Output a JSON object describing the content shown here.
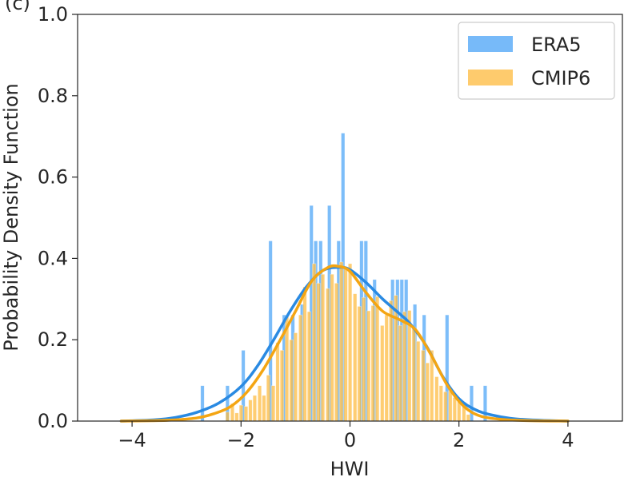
{
  "panel_label": "(c)",
  "chart_data": {
    "type": "bar",
    "title": "",
    "xlabel": "HWI",
    "ylabel": "Probability Density Function",
    "xlim": [
      -5,
      5
    ],
    "ylim": [
      0,
      1.0
    ],
    "xticks": [
      -4,
      -2,
      0,
      2,
      4
    ],
    "xtick_labels": [
      "−4",
      "−2",
      "0",
      "2",
      "4"
    ],
    "yticks": [
      0.0,
      0.2,
      0.4,
      0.6,
      0.8,
      1.0
    ],
    "ytick_labels": [
      "0.0",
      "0.2",
      "0.4",
      "0.6",
      "0.8",
      "1.0"
    ],
    "grid": false,
    "legend_position": "top-right",
    "colors": {
      "ERA5": "#4aa3f7",
      "CMIP6": "#fdba3c",
      "ERA5_kde": "#2a8ae2",
      "CMIP6_kde": "#f4a512"
    },
    "series": [
      {
        "name": "ERA5",
        "kind": "histogram",
        "bin_width": 0.083,
        "bins": [
          {
            "x": -2.7,
            "y": 0.087
          },
          {
            "x": -2.24,
            "y": 0.087
          },
          {
            "x": -1.95,
            "y": 0.174
          },
          {
            "x": -1.45,
            "y": 0.443
          },
          {
            "x": -1.2,
            "y": 0.261
          },
          {
            "x": -1.04,
            "y": 0.261
          },
          {
            "x": -0.87,
            "y": 0.287
          },
          {
            "x": -0.7,
            "y": 0.53
          },
          {
            "x": -0.62,
            "y": 0.443
          },
          {
            "x": -0.53,
            "y": 0.443
          },
          {
            "x": -0.37,
            "y": 0.53
          },
          {
            "x": -0.2,
            "y": 0.443
          },
          {
            "x": -0.12,
            "y": 0.708
          },
          {
            "x": 0.22,
            "y": 0.443
          },
          {
            "x": 0.3,
            "y": 0.443
          },
          {
            "x": 0.46,
            "y": 0.348
          },
          {
            "x": 0.79,
            "y": 0.348
          },
          {
            "x": 0.88,
            "y": 0.348
          },
          {
            "x": 0.96,
            "y": 0.348
          },
          {
            "x": 1.04,
            "y": 0.348
          },
          {
            "x": 1.2,
            "y": 0.287
          },
          {
            "x": 1.37,
            "y": 0.261
          },
          {
            "x": 1.79,
            "y": 0.261
          },
          {
            "x": 2.24,
            "y": 0.087
          },
          {
            "x": 2.49,
            "y": 0.087
          }
        ],
        "kde": [
          [
            -4.2,
            0.0
          ],
          [
            -3.6,
            0.003
          ],
          [
            -3.2,
            0.009
          ],
          [
            -2.8,
            0.022
          ],
          [
            -2.4,
            0.045
          ],
          [
            -2.0,
            0.085
          ],
          [
            -1.7,
            0.135
          ],
          [
            -1.4,
            0.2
          ],
          [
            -1.1,
            0.27
          ],
          [
            -0.8,
            0.33
          ],
          [
            -0.5,
            0.37
          ],
          [
            -0.2,
            0.378
          ],
          [
            0.0,
            0.372
          ],
          [
            0.3,
            0.34
          ],
          [
            0.6,
            0.3
          ],
          [
            0.9,
            0.265
          ],
          [
            1.1,
            0.24
          ],
          [
            1.4,
            0.185
          ],
          [
            1.7,
            0.11
          ],
          [
            2.0,
            0.055
          ],
          [
            2.3,
            0.028
          ],
          [
            2.6,
            0.015
          ],
          [
            3.0,
            0.006
          ],
          [
            3.5,
            0.002
          ],
          [
            4.0,
            0.0
          ]
        ]
      },
      {
        "name": "CMIP6",
        "kind": "histogram",
        "bin_width": 0.083,
        "bins": [
          {
            "x": -2.24,
            "y": 0.022
          },
          {
            "x": -2.15,
            "y": 0.043
          },
          {
            "x": -2.07,
            "y": 0.02
          },
          {
            "x": -1.99,
            "y": 0.039
          },
          {
            "x": -1.9,
            "y": 0.036
          },
          {
            "x": -1.82,
            "y": 0.052
          },
          {
            "x": -1.74,
            "y": 0.063
          },
          {
            "x": -1.65,
            "y": 0.087
          },
          {
            "x": -1.57,
            "y": 0.063
          },
          {
            "x": -1.49,
            "y": 0.113
          },
          {
            "x": -1.4,
            "y": 0.087
          },
          {
            "x": -1.32,
            "y": 0.193
          },
          {
            "x": -1.24,
            "y": 0.174
          },
          {
            "x": -1.15,
            "y": 0.256
          },
          {
            "x": -1.07,
            "y": 0.2
          },
          {
            "x": -0.99,
            "y": 0.217
          },
          {
            "x": -0.9,
            "y": 0.261
          },
          {
            "x": -0.82,
            "y": 0.33
          },
          {
            "x": -0.74,
            "y": 0.269
          },
          {
            "x": -0.65,
            "y": 0.387
          },
          {
            "x": -0.57,
            "y": 0.339
          },
          {
            "x": -0.49,
            "y": 0.361
          },
          {
            "x": -0.4,
            "y": 0.326
          },
          {
            "x": -0.32,
            "y": 0.361
          },
          {
            "x": -0.24,
            "y": 0.339
          },
          {
            "x": -0.15,
            "y": 0.391
          },
          {
            "x": -0.07,
            "y": 0.374
          },
          {
            "x": 0.01,
            "y": 0.387
          },
          {
            "x": 0.1,
            "y": 0.313
          },
          {
            "x": 0.18,
            "y": 0.282
          },
          {
            "x": 0.26,
            "y": 0.304
          },
          {
            "x": 0.35,
            "y": 0.271
          },
          {
            "x": 0.43,
            "y": 0.284
          },
          {
            "x": 0.51,
            "y": 0.306
          },
          {
            "x": 0.6,
            "y": 0.235
          },
          {
            "x": 0.68,
            "y": 0.261
          },
          {
            "x": 0.76,
            "y": 0.296
          },
          {
            "x": 0.85,
            "y": 0.309
          },
          {
            "x": 0.93,
            "y": 0.235
          },
          {
            "x": 1.01,
            "y": 0.269
          },
          {
            "x": 1.1,
            "y": 0.272
          },
          {
            "x": 1.18,
            "y": 0.23
          },
          {
            "x": 1.26,
            "y": 0.196
          },
          {
            "x": 1.35,
            "y": 0.174
          },
          {
            "x": 1.43,
            "y": 0.143
          },
          {
            "x": 1.51,
            "y": 0.174
          },
          {
            "x": 1.6,
            "y": 0.109
          },
          {
            "x": 1.68,
            "y": 0.087
          },
          {
            "x": 1.76,
            "y": 0.072
          },
          {
            "x": 1.85,
            "y": 0.074
          },
          {
            "x": 1.93,
            "y": 0.058
          },
          {
            "x": 2.01,
            "y": 0.052
          },
          {
            "x": 2.1,
            "y": 0.036
          },
          {
            "x": 2.18,
            "y": 0.016
          }
        ],
        "kde": [
          [
            -4.2,
            0.0
          ],
          [
            -3.6,
            0.001
          ],
          [
            -3.2,
            0.003
          ],
          [
            -2.8,
            0.008
          ],
          [
            -2.5,
            0.018
          ],
          [
            -2.2,
            0.035
          ],
          [
            -1.9,
            0.07
          ],
          [
            -1.6,
            0.125
          ],
          [
            -1.3,
            0.195
          ],
          [
            -1.0,
            0.27
          ],
          [
            -0.7,
            0.345
          ],
          [
            -0.4,
            0.378
          ],
          [
            -0.2,
            0.38
          ],
          [
            0.0,
            0.368
          ],
          [
            0.3,
            0.315
          ],
          [
            0.6,
            0.27
          ],
          [
            0.9,
            0.25
          ],
          [
            1.2,
            0.225
          ],
          [
            1.5,
            0.16
          ],
          [
            1.8,
            0.085
          ],
          [
            2.1,
            0.035
          ],
          [
            2.4,
            0.012
          ],
          [
            2.8,
            0.004
          ],
          [
            3.3,
            0.001
          ],
          [
            4.0,
            0.0
          ]
        ]
      }
    ]
  }
}
